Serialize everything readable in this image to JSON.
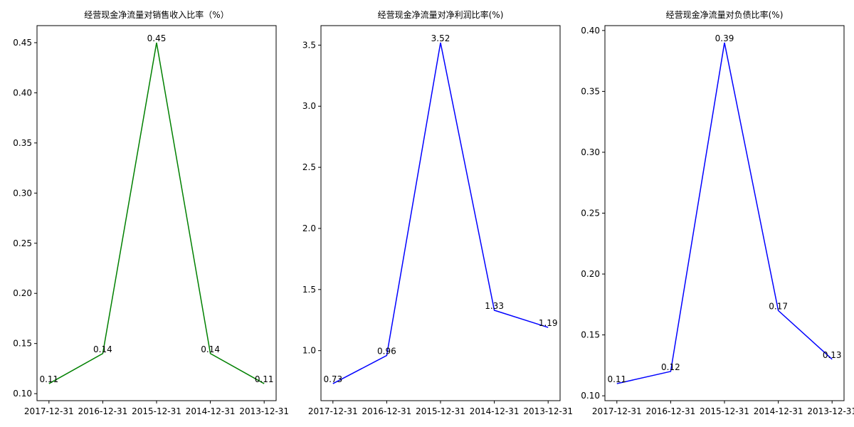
{
  "chart_data": [
    {
      "type": "line",
      "title": "经营现金净流量对销售收入比率（%）",
      "categories": [
        "2017-12-31",
        "2016-12-31",
        "2015-12-31",
        "2014-12-31",
        "2013-12-31"
      ],
      "series": [
        {
          "color": "green",
          "values": [
            0.11,
            0.14,
            0.45,
            0.14,
            0.11
          ]
        }
      ],
      "ylim": [
        0.093,
        0.467
      ],
      "yticks": [
        {
          "value": 0.1,
          "label": "0.10"
        },
        0.15,
        {
          "value": 0.2,
          "label": "0.20"
        },
        0.25,
        {
          "value": 0.3,
          "label": "0.30"
        },
        0.35,
        {
          "value": 0.4,
          "label": "0.40"
        },
        0.45
      ]
    },
    {
      "type": "line",
      "title": "经营现金净流量对净利润比率(%)",
      "categories": [
        "2017-12-31",
        "2016-12-31",
        "2015-12-31",
        "2014-12-31",
        "2013-12-31"
      ],
      "series": [
        {
          "color": "blue",
          "values": [
            0.73,
            0.96,
            3.52,
            1.33,
            1.19
          ]
        }
      ],
      "ylim": [
        0.5905,
        3.6595
      ],
      "yticks": [
        {
          "value": 1,
          "label": "1.0"
        },
        1.5,
        {
          "value": 2,
          "label": "2.0"
        },
        2.5,
        {
          "value": 3,
          "label": "3.0"
        },
        3.5
      ]
    },
    {
      "type": "line",
      "title": "经营现金净流量对负债比率(%)",
      "categories": [
        "2017-12-31",
        "2016-12-31",
        "2015-12-31",
        "2014-12-31",
        "2013-12-31"
      ],
      "series": [
        {
          "color": "blue",
          "values": [
            0.11,
            0.12,
            0.39,
            0.17,
            0.13
          ]
        }
      ],
      "ylim": [
        0.096,
        0.404
      ],
      "yticks": [
        {
          "value": 0.1,
          "label": "0.10"
        },
        0.15,
        {
          "value": 0.2,
          "label": "0.20"
        },
        0.25,
        {
          "value": 0.3,
          "label": "0.30"
        },
        0.35,
        {
          "value": 0.4,
          "label": "0.40"
        }
      ]
    }
  ]
}
